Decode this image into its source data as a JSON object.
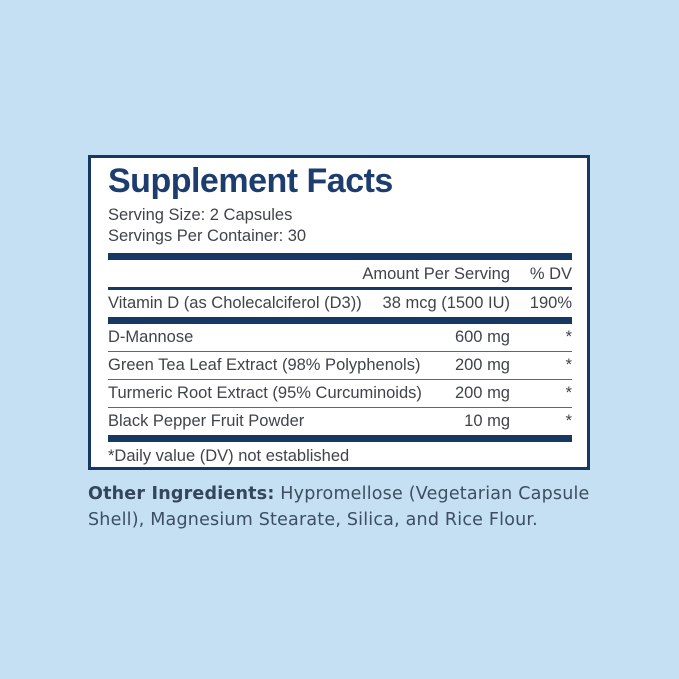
{
  "colors": {
    "background": "#c4e0f2",
    "panel_background": "#ffffff",
    "navy": "#163862",
    "title_navy": "#1d3d6e",
    "body_text": "#3f444b",
    "thin_divider": "#5c6770",
    "other_ingredients_text": "#3d4e61"
  },
  "panel": {
    "title": "Supplement Facts",
    "serving_size": "Serving Size: 2 Capsules",
    "servings_per_container": "Servings Per Container: 30",
    "table": {
      "amount_header": "Amount Per Serving",
      "dv_header": "% DV",
      "rows": [
        {
          "name": "Vitamin D (as Cholecalciferol (D3))",
          "amount": "38 mcg (1500 IU)",
          "dv": "190%",
          "divider_after": "thick"
        },
        {
          "name": "D-Mannose",
          "amount": "600 mg",
          "dv": "*",
          "divider_after": "thin"
        },
        {
          "name": "Green Tea Leaf Extract (98% Polyphenols)",
          "amount": "200 mg",
          "dv": "*",
          "divider_after": "thin"
        },
        {
          "name": "Turmeric Root Extract (95% Curcuminoids)",
          "amount": "200 mg",
          "dv": "*",
          "divider_after": "thin"
        },
        {
          "name": "Black Pepper Fruit Powder",
          "amount": "10 mg",
          "dv": "*",
          "divider_after": "thick"
        }
      ]
    },
    "footnote": "*Daily value (DV) not established"
  },
  "other_ingredients": {
    "label": "Other Ingredients:",
    "text": "Hypromellose (Vegetarian Capsule Shell), Magnesium Stearate, Silica, and Rice Flour."
  }
}
